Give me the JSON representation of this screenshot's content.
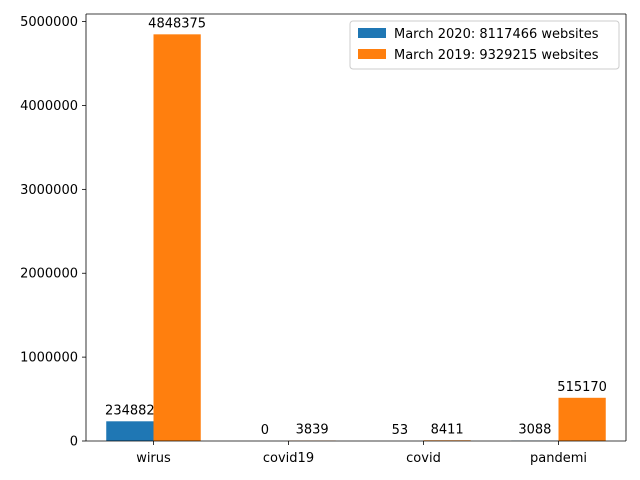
{
  "chart_data": {
    "type": "bar",
    "title": "",
    "xlabel": "",
    "ylabel": "",
    "categories": [
      "wirus",
      "covid19",
      "covid",
      "pandemi"
    ],
    "series": [
      {
        "name": "March 2020: 8117466 websites",
        "color": "#1f77b4",
        "values": [
          234882,
          0,
          53,
          3088
        ]
      },
      {
        "name": "March 2019: 9329215 websites",
        "color": "#ff7f0e",
        "values": [
          4848375,
          3839,
          8411,
          515170
        ]
      }
    ],
    "ylim": [
      0,
      5090793
    ],
    "yticks": [
      0,
      1000000,
      2000000,
      3000000,
      4000000,
      5000000
    ],
    "legend_position": "top-right",
    "grid": false
  }
}
